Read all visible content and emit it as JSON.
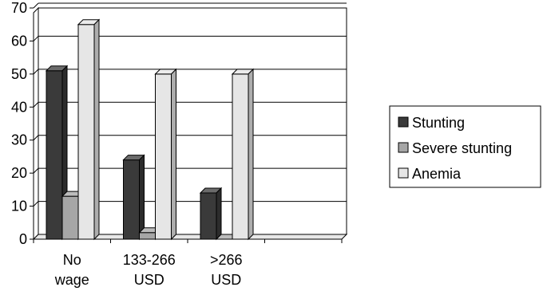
{
  "chart_data": {
    "type": "bar",
    "style": "3d-clustered-column",
    "categories": [
      [
        "No",
        "wage"
      ],
      [
        "133-266",
        "USD"
      ],
      [
        ">266",
        "USD"
      ],
      [
        "",
        ""
      ]
    ],
    "series": [
      {
        "name": "Stunting",
        "values": [
          51,
          24,
          14,
          null
        ],
        "color": "#3a3a3a"
      },
      {
        "name": "Severe stunting",
        "values": [
          13,
          2,
          0,
          null
        ],
        "color": "#a6a6a6"
      },
      {
        "name": "Anemia",
        "values": [
          65,
          50,
          50,
          null
        ],
        "color": "#e6e6e6"
      }
    ],
    "ylim": [
      0,
      70
    ],
    "yticks": [
      0,
      10,
      20,
      30,
      40,
      50,
      60,
      70
    ],
    "grid": true,
    "legend_position": "right"
  }
}
